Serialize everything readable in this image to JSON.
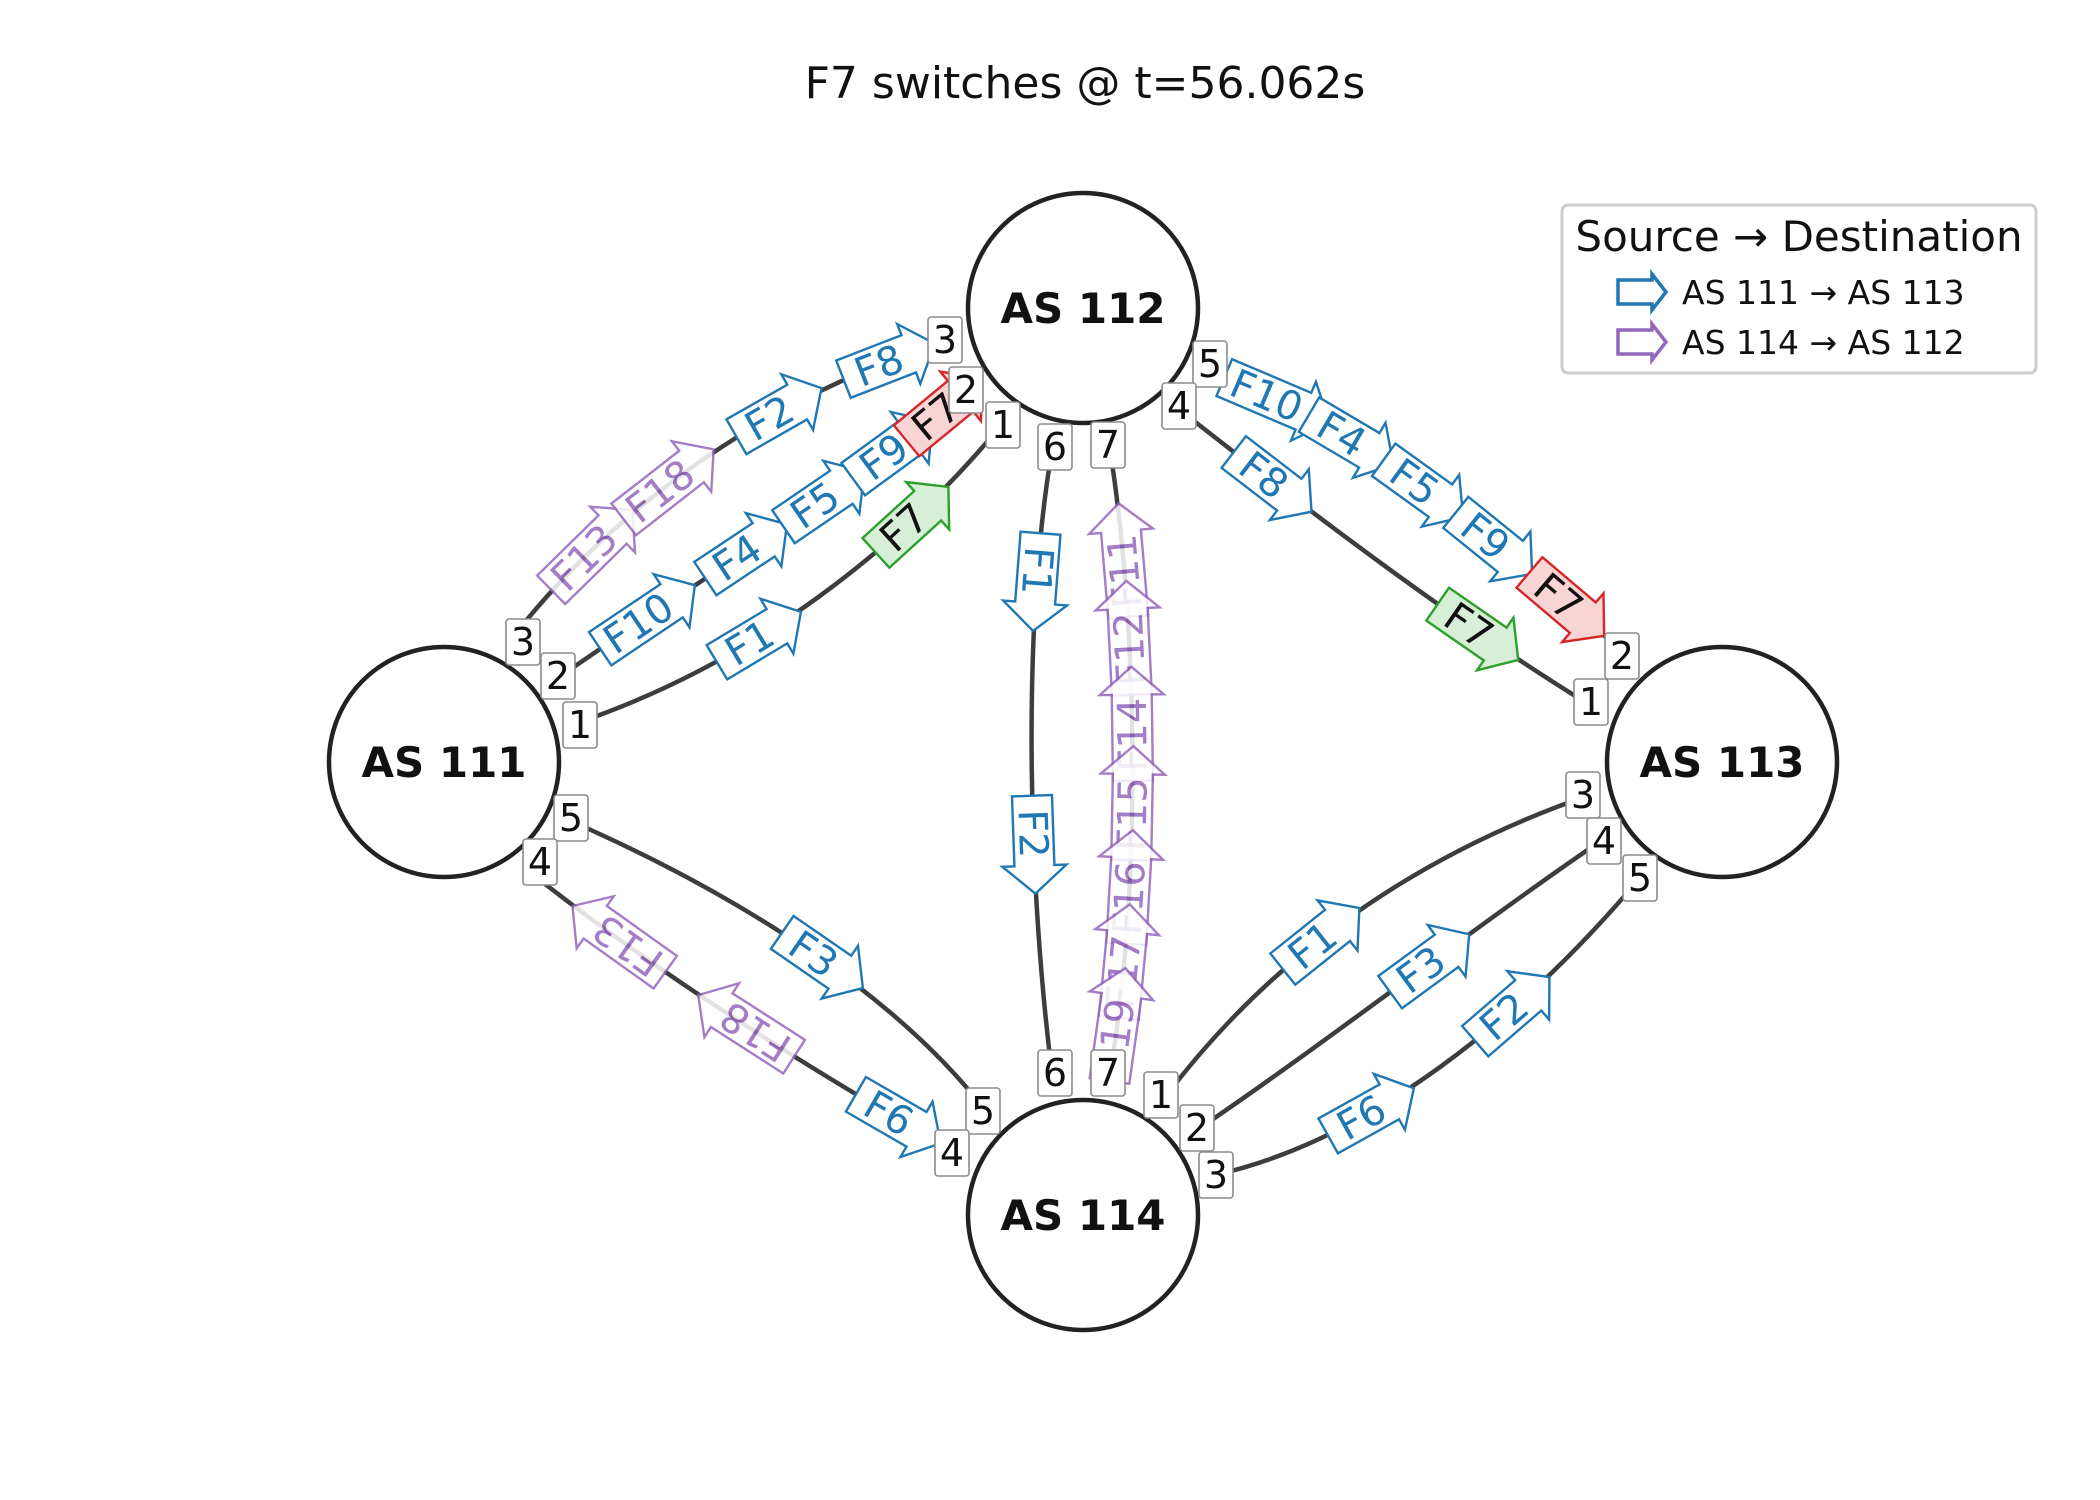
{
  "title": "F7 switches @ t=56.062s",
  "colors": {
    "blue": "#1f77b4",
    "purple": "#9467bd",
    "red": "#d62728",
    "green": "#2ca02c",
    "link": "#3d3d3d"
  },
  "legend": {
    "title": "Source → Destination",
    "entries": [
      {
        "label": "AS 111 → AS 113",
        "color": "blue"
      },
      {
        "label": "AS 114 → AS 112",
        "color": "purple"
      }
    ]
  },
  "nodes": [
    {
      "id": "n111",
      "label": "AS 111"
    },
    {
      "id": "n112",
      "label": "AS 112"
    },
    {
      "id": "n113",
      "label": "AS 113"
    },
    {
      "id": "n114",
      "label": "AS 114"
    }
  ],
  "links": [
    {
      "id": "l111_112_a",
      "ports": [
        "3",
        "3"
      ]
    },
    {
      "id": "l111_112_b",
      "ports": [
        "2",
        "2"
      ]
    },
    {
      "id": "l111_112_c",
      "ports": [
        "1",
        "1"
      ]
    },
    {
      "id": "l111_114_a",
      "ports": [
        "5",
        "5"
      ]
    },
    {
      "id": "l111_114_b",
      "ports": [
        "4",
        "4"
      ]
    },
    {
      "id": "l112_114_a",
      "ports": [
        "6",
        "6"
      ]
    },
    {
      "id": "l112_114_b",
      "ports": [
        "7",
        "7"
      ]
    },
    {
      "id": "l112_113_a",
      "ports": [
        "5",
        "2"
      ]
    },
    {
      "id": "l112_113_b",
      "ports": [
        "4",
        "1"
      ]
    },
    {
      "id": "l114_113_a",
      "ports": [
        "1",
        "3"
      ]
    },
    {
      "id": "l114_113_b",
      "ports": [
        "2",
        "4"
      ]
    },
    {
      "id": "l114_113_c",
      "ports": [
        "3",
        "5"
      ]
    }
  ],
  "flows": [
    {
      "label": "F13",
      "color": "purple",
      "link": "l111_112_a",
      "faded": true
    },
    {
      "label": "F18",
      "color": "purple",
      "link": "l111_112_a",
      "faded": true
    },
    {
      "label": "F2",
      "color": "blue",
      "link": "l111_112_a"
    },
    {
      "label": "F8",
      "color": "blue",
      "link": "l111_112_a"
    },
    {
      "label": "F10",
      "color": "blue",
      "link": "l111_112_b"
    },
    {
      "label": "F4",
      "color": "blue",
      "link": "l111_112_b"
    },
    {
      "label": "F5",
      "color": "blue",
      "link": "l111_112_b"
    },
    {
      "label": "F9",
      "color": "blue",
      "link": "l111_112_b"
    },
    {
      "label": "F7",
      "color": "red",
      "link": "l111_112_b",
      "highlight": true
    },
    {
      "label": "F1",
      "color": "blue",
      "link": "l111_112_c"
    },
    {
      "label": "F7",
      "color": "green",
      "link": "l111_112_c",
      "highlight": true
    },
    {
      "label": "F1",
      "color": "blue",
      "link": "l112_114_a"
    },
    {
      "label": "F2",
      "color": "blue",
      "link": "l112_114_a"
    },
    {
      "label": "F11",
      "color": "purple",
      "link": "l112_114_b",
      "faded": true
    },
    {
      "label": "F12",
      "color": "purple",
      "link": "l112_114_b",
      "faded": true
    },
    {
      "label": "F14",
      "color": "purple",
      "link": "l112_114_b",
      "faded": true
    },
    {
      "label": "F15",
      "color": "purple",
      "link": "l112_114_b",
      "faded": true
    },
    {
      "label": "F16",
      "color": "purple",
      "link": "l112_114_b",
      "faded": true
    },
    {
      "label": "F17",
      "color": "purple",
      "link": "l112_114_b",
      "faded": true
    },
    {
      "label": "F19",
      "color": "purple",
      "link": "l112_114_b",
      "faded": true
    },
    {
      "label": "F10",
      "color": "blue",
      "link": "l112_113_a"
    },
    {
      "label": "F4",
      "color": "blue",
      "link": "l112_113_a"
    },
    {
      "label": "F5",
      "color": "blue",
      "link": "l112_113_a"
    },
    {
      "label": "F9",
      "color": "blue",
      "link": "l112_113_a"
    },
    {
      "label": "F7",
      "color": "red",
      "link": "l112_113_a",
      "highlight": true
    },
    {
      "label": "F8",
      "color": "blue",
      "link": "l112_113_b"
    },
    {
      "label": "F7",
      "color": "green",
      "link": "l112_113_b",
      "highlight": true
    },
    {
      "label": "F3",
      "color": "blue",
      "link": "l111_114_a"
    },
    {
      "label": "F13",
      "color": "purple",
      "link": "l111_114_b",
      "faded": true
    },
    {
      "label": "F18",
      "color": "purple",
      "link": "l111_114_b",
      "faded": true
    },
    {
      "label": "F6",
      "color": "blue",
      "link": "l111_114_b"
    },
    {
      "label": "F1",
      "color": "blue",
      "link": "l114_113_a"
    },
    {
      "label": "F3",
      "color": "blue",
      "link": "l114_113_b"
    },
    {
      "label": "F6",
      "color": "blue",
      "link": "l114_113_c"
    },
    {
      "label": "F2",
      "color": "blue",
      "link": "l114_113_c"
    }
  ]
}
